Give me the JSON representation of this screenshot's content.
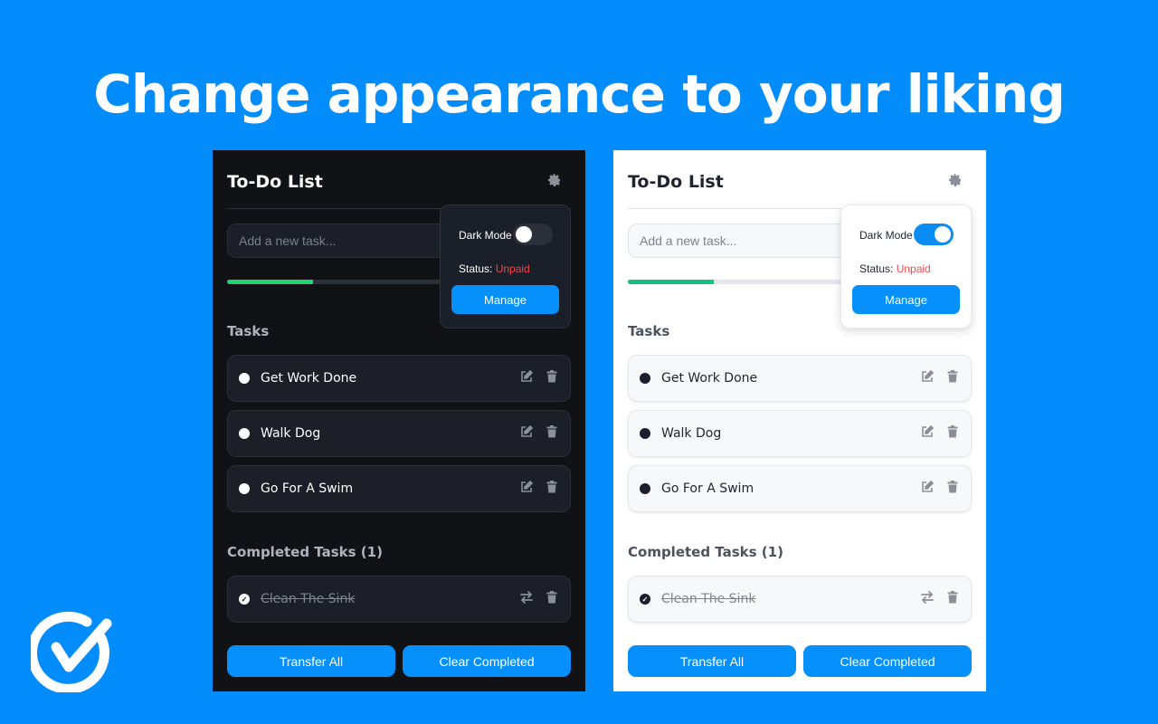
{
  "headline": "Change appearance to your liking",
  "colors": {
    "background": "#038cfc",
    "accent": "#0590fb",
    "progress": "#1fd46e",
    "unpaid": "#f0474f"
  },
  "panels": [
    {
      "theme": "dark",
      "title": "To-Do List",
      "input_placeholder": "Add a new task...",
      "progress_percent": 25,
      "tasks_heading": "Tasks",
      "tasks": [
        "Get Work Done",
        "Walk Dog",
        "Go For A Swim"
      ],
      "completed_heading": "Completed Tasks (1)",
      "completed": [
        "Clean The Sink"
      ],
      "transfer_all": "Transfer All",
      "clear_completed": "Clear Completed",
      "settings": {
        "dark_mode_label": "Dark Mode",
        "dark_mode_on": false,
        "status_label": "Status:",
        "status_value": "Unpaid",
        "manage": "Manage"
      }
    },
    {
      "theme": "light",
      "title": "To-Do List",
      "input_placeholder": "Add a new task...",
      "progress_percent": 25,
      "tasks_heading": "Tasks",
      "tasks": [
        "Get Work Done",
        "Walk Dog",
        "Go For A Swim"
      ],
      "completed_heading": "Completed Tasks (1)",
      "completed": [
        "Clean The Sink"
      ],
      "transfer_all": "Transfer All",
      "clear_completed": "Clear Completed",
      "settings": {
        "dark_mode_label": "Dark Mode",
        "dark_mode_on": true,
        "status_label": "Status:",
        "status_value": "Unpaid",
        "manage": "Manage"
      }
    }
  ]
}
